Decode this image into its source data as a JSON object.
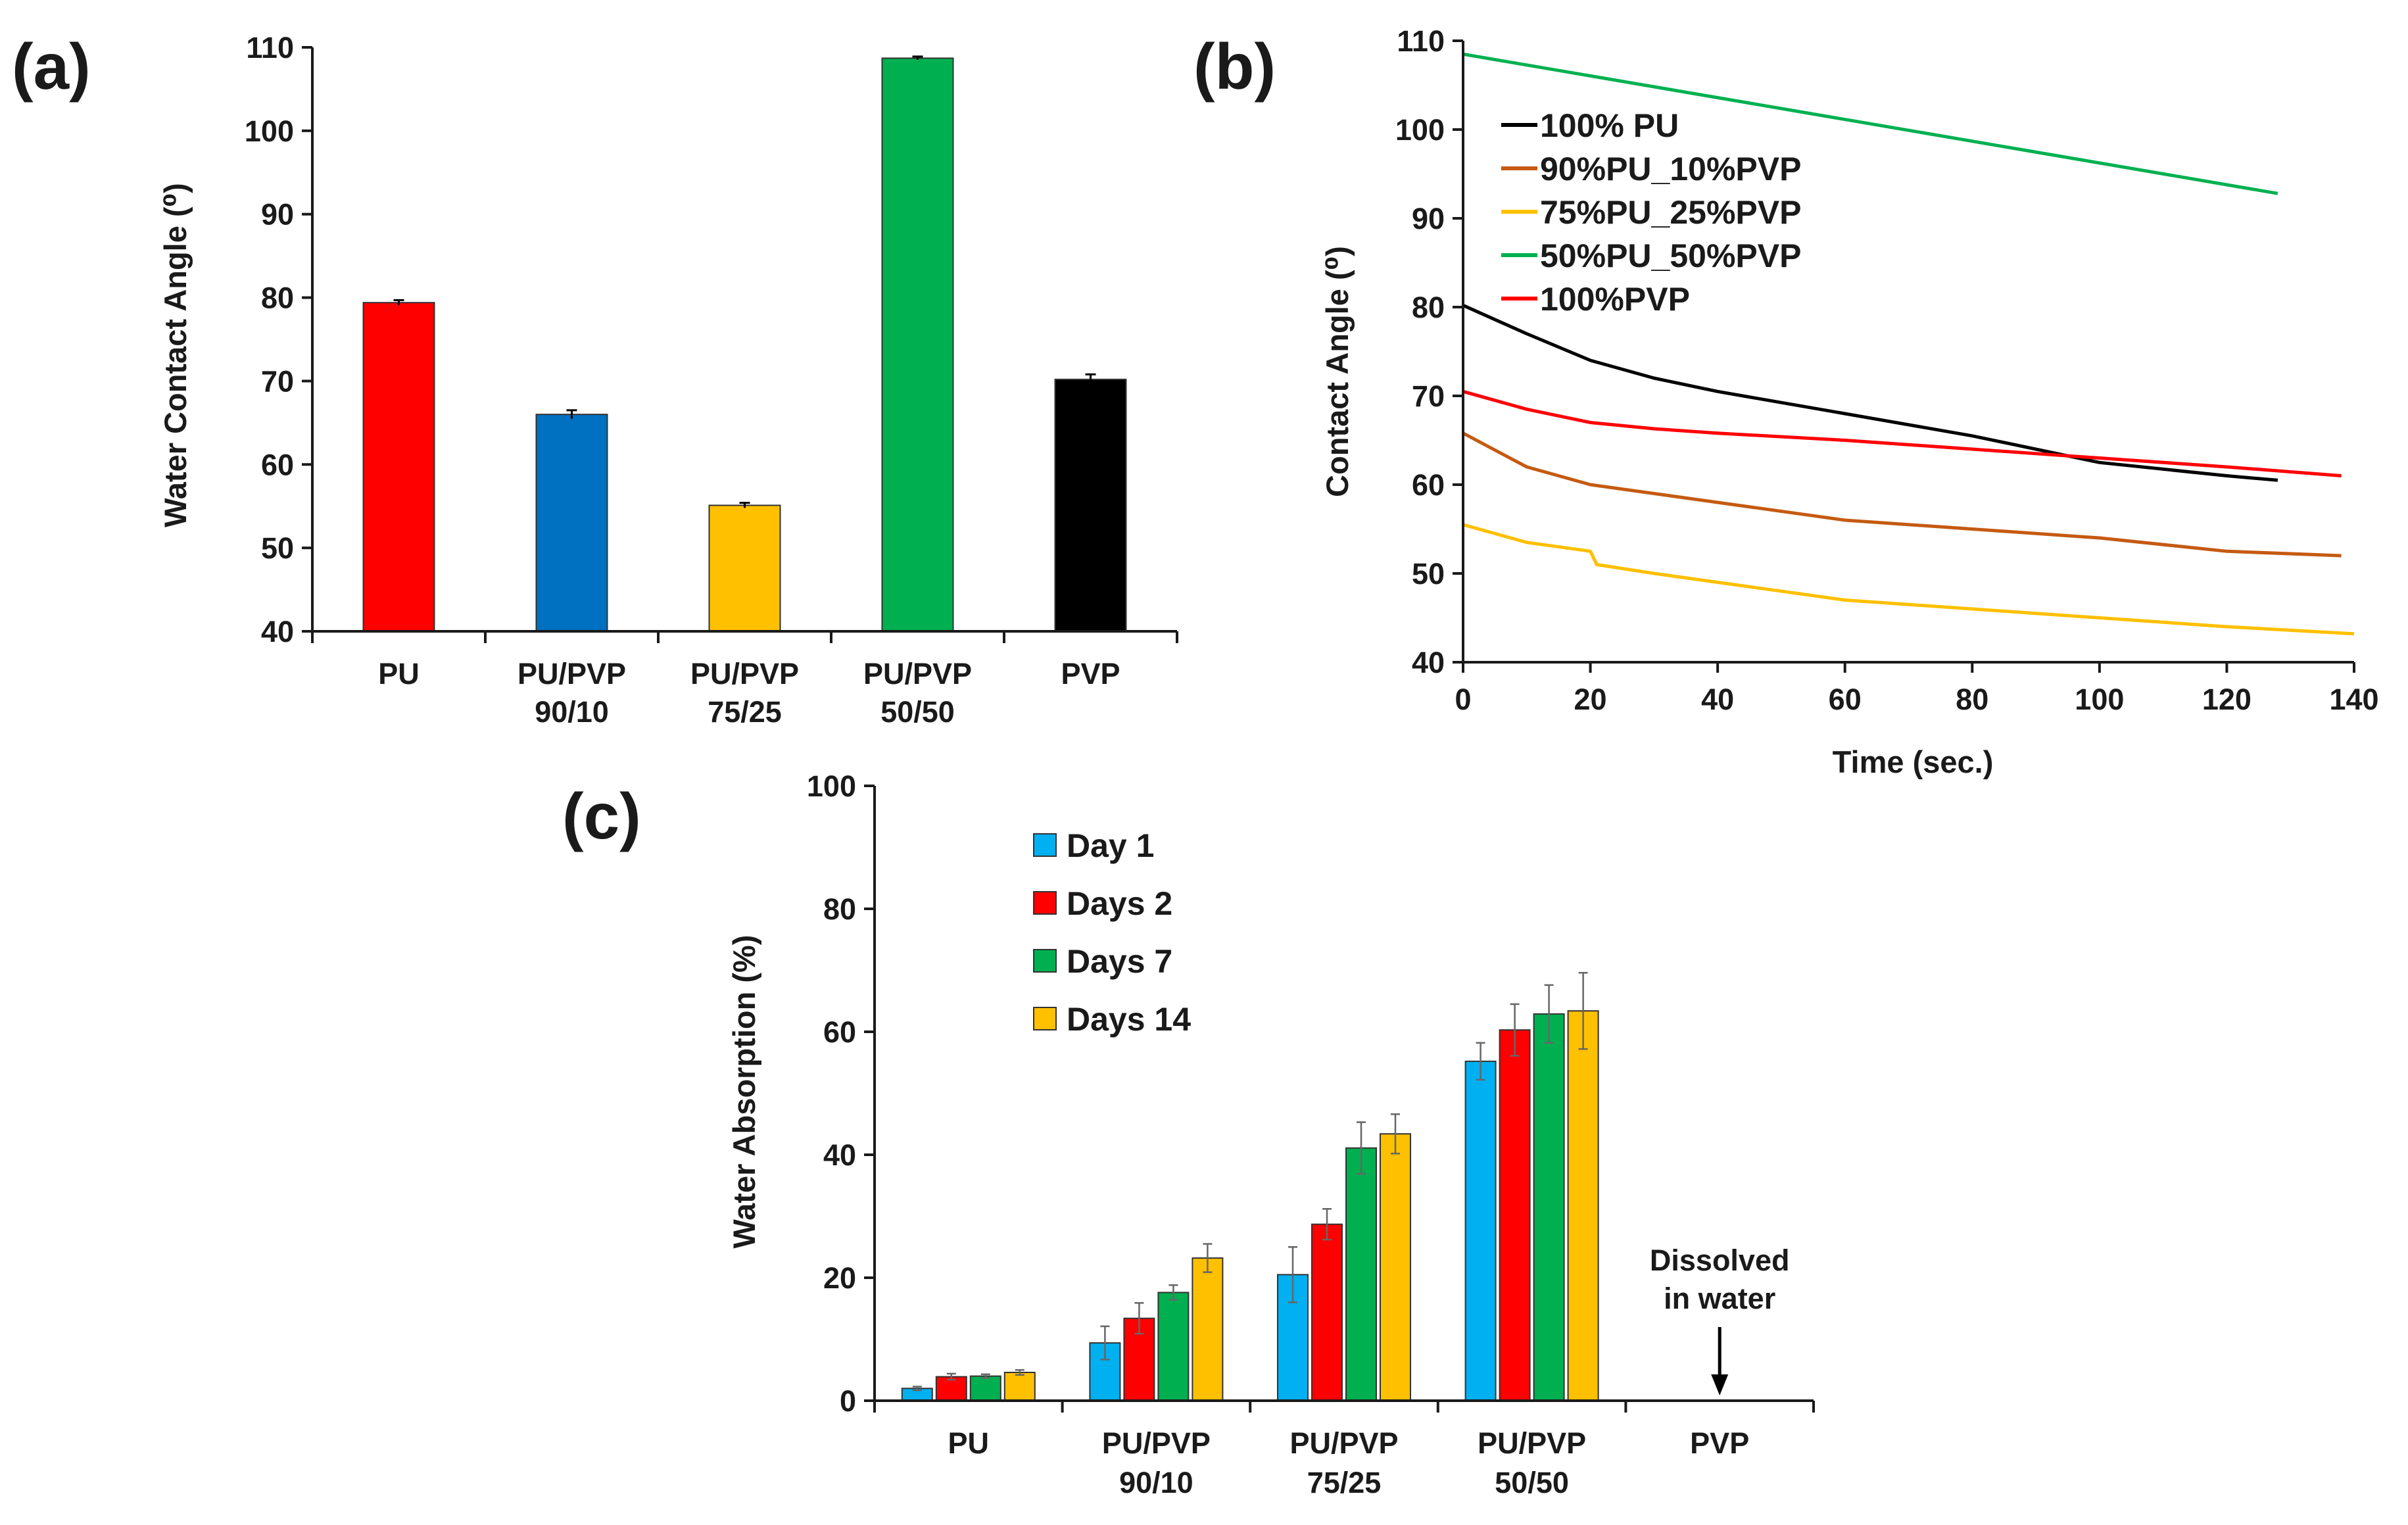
{
  "chart_data": [
    {
      "panel_label": "(a)",
      "type": "bar",
      "title": "",
      "xlabel": "",
      "ylabel": "Water Contact Angle (⁰)",
      "ylim": [
        40,
        110
      ],
      "yticks": [
        "40",
        "50",
        "60",
        "70",
        "80",
        "90",
        "100",
        "110"
      ],
      "categories": [
        [
          "PU"
        ],
        [
          "PU/PVP",
          "90/10"
        ],
        [
          "PU/PVP",
          "75/25"
        ],
        [
          "PU/PVP",
          "50/50"
        ],
        [
          "PVP"
        ]
      ],
      "values": [
        79.4,
        66.0,
        55.1,
        108.7,
        70.2
      ],
      "errors": [
        0.3,
        0.5,
        0.3,
        0.2,
        0.6
      ],
      "colors": [
        "#ff0000",
        "#0070c0",
        "#ffc000",
        "#00b050",
        "#000000"
      ]
    },
    {
      "panel_label": "(b)",
      "type": "line",
      "title": "",
      "xlabel": "Time (sec.)",
      "ylabel": "Contact Angle (⁰)",
      "xlim": [
        0,
        140
      ],
      "ylim": [
        40,
        110
      ],
      "xticks": [
        "0",
        "20",
        "40",
        "60",
        "80",
        "100",
        "120",
        "140"
      ],
      "yticks": [
        "40",
        "50",
        "60",
        "70",
        "80",
        "90",
        "100",
        "110"
      ],
      "legend_position": "top-left",
      "series": [
        {
          "name": "100% PU",
          "color": "#000000",
          "x": [
            0,
            10,
            20,
            30,
            40,
            60,
            80,
            100,
            120,
            128
          ],
          "y": [
            80.2,
            77,
            74,
            72,
            70.5,
            68,
            65.5,
            62.5,
            61,
            60.5
          ]
        },
        {
          "name": "90%PU_10%PVP",
          "color": "#c55a11",
          "x": [
            0,
            10,
            20,
            30,
            40,
            60,
            80,
            100,
            120,
            138
          ],
          "y": [
            65.8,
            62,
            60,
            59,
            58,
            56,
            55,
            54,
            52.5,
            52
          ]
        },
        {
          "name": "75%PU_25%PVP",
          "color": "#ffc000",
          "x": [
            0,
            10,
            20,
            21,
            30,
            40,
            60,
            80,
            100,
            120,
            140
          ],
          "y": [
            55.5,
            53.5,
            52.5,
            51,
            50,
            49,
            47,
            46,
            45,
            44,
            43.2
          ]
        },
        {
          "name": "50%PU_50%PVP",
          "color": "#00b050",
          "x": [
            0,
            128
          ],
          "y": [
            108.5,
            92.8
          ]
        },
        {
          "name": "100%PVP",
          "color": "#ff0000",
          "x": [
            0,
            5,
            10,
            20,
            30,
            40,
            60,
            80,
            100,
            120,
            138
          ],
          "y": [
            70.5,
            69.5,
            68.5,
            67,
            66.3,
            65.8,
            65,
            64,
            63,
            62,
            61
          ]
        }
      ]
    },
    {
      "panel_label": "(c)",
      "type": "bar",
      "title": "",
      "xlabel": "",
      "ylabel": "Water Absorption (%)",
      "ylim": [
        0,
        100
      ],
      "yticks": [
        "0",
        "20",
        "40",
        "60",
        "80",
        "100"
      ],
      "legend_position": "top-left",
      "categories": [
        [
          "PU"
        ],
        [
          "PU/PVP",
          "90/10"
        ],
        [
          "PU/PVP",
          "75/25"
        ],
        [
          "PU/PVP",
          "50/50"
        ],
        [
          "PVP"
        ]
      ],
      "series": [
        {
          "name": "Day 1",
          "color": "#00b0f0",
          "values": [
            2.0,
            9.4,
            20.5,
            55.2,
            null
          ],
          "errors": [
            0.3,
            2.7,
            4.5,
            3.0,
            null
          ]
        },
        {
          "name": "Days 2",
          "color": "#ff0000",
          "values": [
            3.9,
            13.4,
            28.7,
            60.3,
            null
          ],
          "errors": [
            0.5,
            2.5,
            2.5,
            4.2,
            null
          ]
        },
        {
          "name": "Days 7",
          "color": "#00b050",
          "values": [
            4.0,
            17.6,
            41.1,
            62.9,
            null
          ],
          "errors": [
            0.3,
            1.2,
            4.2,
            4.7,
            null
          ]
        },
        {
          "name": "Days 14",
          "color": "#ffc000",
          "values": [
            4.6,
            23.2,
            43.4,
            63.4,
            null
          ],
          "errors": [
            0.4,
            2.3,
            3.2,
            6.2,
            null
          ]
        }
      ],
      "annotation": {
        "lines": [
          "Dissolved",
          "in water"
        ],
        "category_index": 4
      }
    }
  ]
}
